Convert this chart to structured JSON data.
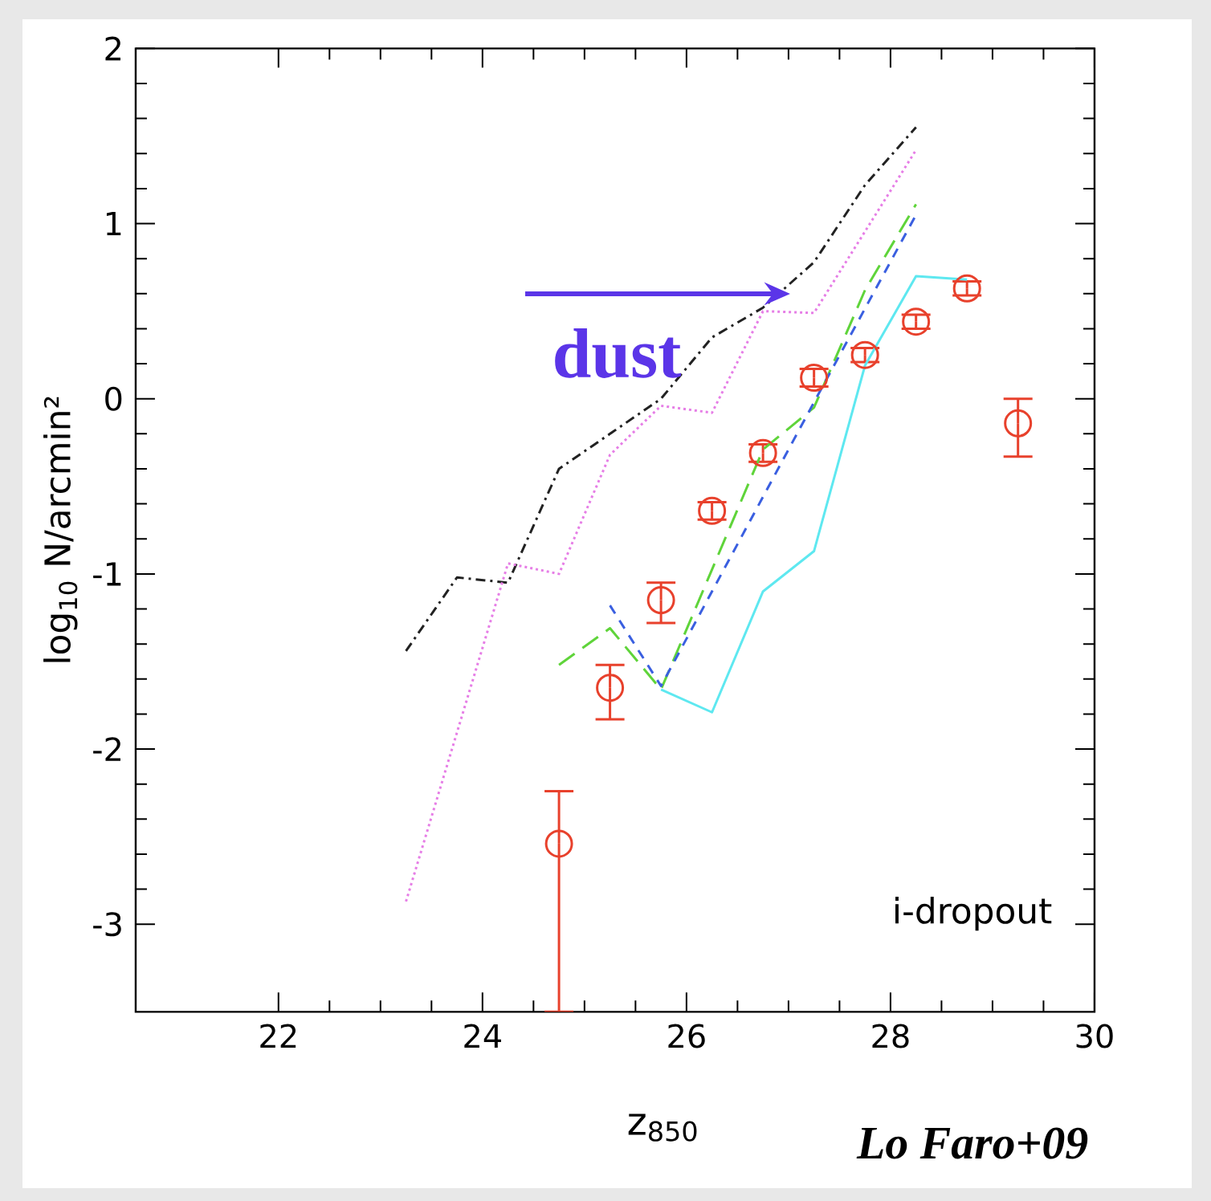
{
  "chart_data": {
    "type": "line",
    "xlabel": "z$_{850}$",
    "ylabel": "log$_{10}$ N/arcmin²",
    "xlim": [
      20.6,
      30
    ],
    "ylim": [
      -3.5,
      2
    ],
    "xticks": [
      22,
      24,
      26,
      28,
      30
    ],
    "yticks": [
      -3,
      -2,
      -1,
      0,
      1,
      2
    ],
    "annotations": [
      "dust",
      "i-dropout",
      "Lo Faro+09"
    ],
    "series": [
      {
        "type": "scatter",
        "color": "#e8412c",
        "marker": "circle",
        "x": [
          24.75,
          25.25,
          25.75,
          26.25,
          26.75,
          27.25,
          27.75,
          28.25,
          28.75,
          29.25
        ],
        "values": [
          -2.54,
          -1.65,
          -1.15,
          -0.64,
          -0.31,
          0.12,
          0.25,
          0.44,
          0.63,
          -0.14
        ],
        "errors": [
          [
            -3.5,
            -2.24
          ],
          [
            -1.83,
            -1.52
          ],
          [
            -1.28,
            -1.05
          ],
          0.05,
          0.05,
          0.05,
          0.04,
          0.04,
          0.04,
          [
            -0.33,
            0.0
          ]
        ]
      },
      {
        "color": "#222222",
        "line_style": "dashdot",
        "marker": "none",
        "x": [
          23.25,
          23.75,
          24.25,
          24.75,
          25.25,
          25.75,
          26.25,
          26.75,
          27.25,
          27.75,
          28.25
        ],
        "values": [
          -1.44,
          -1.02,
          -1.05,
          -0.4,
          -0.2,
          0.0,
          0.35,
          0.52,
          0.78,
          1.22,
          1.55
        ]
      },
      {
        "color": "#e67ee6",
        "line_style": "dotted",
        "marker": "none",
        "x": [
          23.25,
          24.25,
          24.75,
          25.25,
          25.75,
          26.25,
          26.75,
          27.25,
          28.25
        ],
        "values": [
          -2.87,
          -0.94,
          -1.0,
          -0.32,
          -0.04,
          -0.08,
          0.5,
          0.49,
          1.42
        ]
      },
      {
        "color": "#5fd43a",
        "line_style": "longdashed",
        "marker": "none",
        "x": [
          24.75,
          25.25,
          25.75,
          26.75,
          27.25,
          27.75,
          28.25
        ],
        "values": [
          -1.52,
          -1.31,
          -1.66,
          -0.29,
          -0.05,
          0.62,
          1.11
        ]
      },
      {
        "color": "#3a5fe0",
        "line_style": "dashed",
        "marker": "none",
        "x": [
          25.25,
          25.75,
          27.25,
          28.25
        ],
        "values": [
          -1.18,
          -1.64,
          -0.02,
          1.05
        ]
      },
      {
        "color": "#5ee8f0",
        "line_style": "solid",
        "marker": "none",
        "x": [
          25.75,
          26.25,
          26.75,
          27.25,
          27.75,
          28.25,
          28.75
        ],
        "values": [
          -1.66,
          -1.79,
          -1.1,
          -0.87,
          0.19,
          0.7,
          0.68
        ]
      }
    ]
  }
}
